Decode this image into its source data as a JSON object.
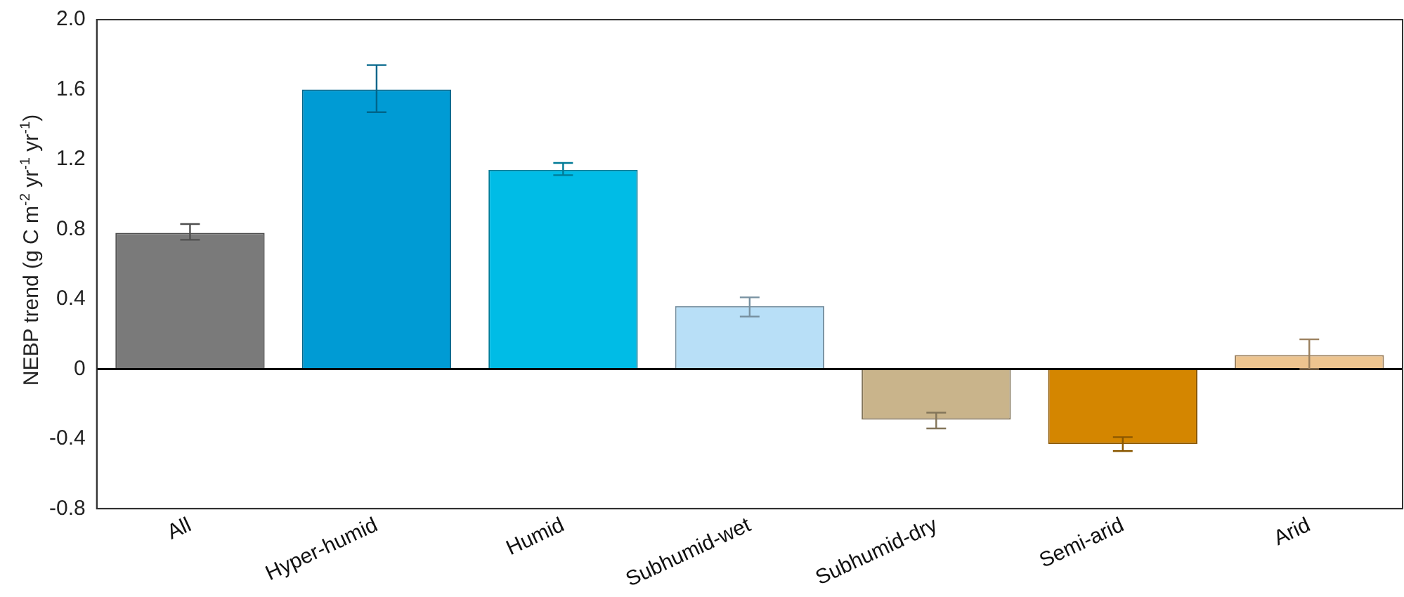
{
  "chart_data": {
    "type": "bar",
    "ylabel": "NEBP trend (g C m$^{-2}$ yr$^{-1}$ yr$^{-1}$)",
    "categories": [
      "All",
      "Hyper-humid",
      "Humid",
      "Subhumid-wet",
      "Subhumid-dry",
      "Semi-arid",
      "Arid"
    ],
    "values": [
      0.78,
      1.6,
      1.14,
      0.36,
      -0.29,
      -0.43,
      0.08
    ],
    "colors": [
      "#7a7a7a",
      "#009bd4",
      "#00bce6",
      "#b8dff7",
      "#c9b48b",
      "#d48600",
      "#edc48f"
    ],
    "errors": [
      [
        0.74,
        0.83
      ],
      [
        1.47,
        1.74
      ],
      [
        1.11,
        1.18
      ],
      [
        0.3,
        0.41
      ],
      [
        -0.34,
        -0.25
      ],
      [
        -0.47,
        -0.39
      ],
      [
        0,
        0.17
      ]
    ],
    "ylim": [
      -0.8,
      2.0
    ],
    "yticks": [
      {
        "value": -0.8,
        "label": "-0.8"
      },
      {
        "value": -0.4,
        "label": "-0.4"
      },
      {
        "value": 0,
        "label": "0"
      },
      {
        "value": 0.4,
        "label": "0.4"
      },
      {
        "value": 0.8,
        "label": "0.8"
      },
      {
        "value": 1.2,
        "label": "1.2"
      },
      {
        "value": 1.6,
        "label": "1.6"
      },
      {
        "value": 2.0,
        "label": "2.0"
      }
    ],
    "ref_lines": [
      {
        "axis": "y",
        "value": 0,
        "color": "#000000"
      }
    ],
    "grid": false,
    "legend": false
  }
}
